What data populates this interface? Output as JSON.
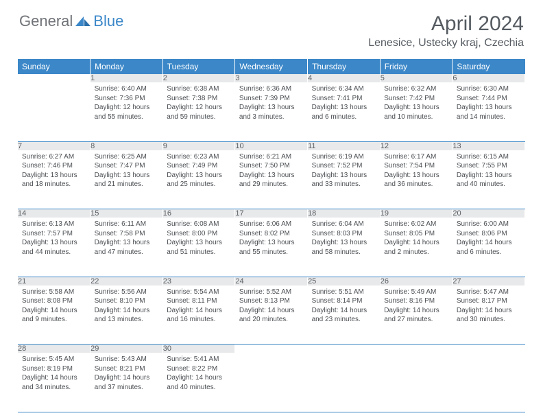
{
  "brand": {
    "part1": "General",
    "part2": "Blue"
  },
  "title": "April 2024",
  "location": "Lenesice, Ustecky kraj, Czechia",
  "colors": {
    "accent": "#3b87c8",
    "headerText": "#ffffff",
    "dayBg": "#e8e9ea",
    "text": "#4a4e52",
    "titleText": "#555b61"
  },
  "weekdays": [
    "Sunday",
    "Monday",
    "Tuesday",
    "Wednesday",
    "Thursday",
    "Friday",
    "Saturday"
  ],
  "weeks": [
    [
      {
        "n": "",
        "sr": "",
        "ss": "",
        "dl": ""
      },
      {
        "n": "1",
        "sr": "Sunrise: 6:40 AM",
        "ss": "Sunset: 7:36 PM",
        "dl": "Daylight: 12 hours and 55 minutes."
      },
      {
        "n": "2",
        "sr": "Sunrise: 6:38 AM",
        "ss": "Sunset: 7:38 PM",
        "dl": "Daylight: 12 hours and 59 minutes."
      },
      {
        "n": "3",
        "sr": "Sunrise: 6:36 AM",
        "ss": "Sunset: 7:39 PM",
        "dl": "Daylight: 13 hours and 3 minutes."
      },
      {
        "n": "4",
        "sr": "Sunrise: 6:34 AM",
        "ss": "Sunset: 7:41 PM",
        "dl": "Daylight: 13 hours and 6 minutes."
      },
      {
        "n": "5",
        "sr": "Sunrise: 6:32 AM",
        "ss": "Sunset: 7:42 PM",
        "dl": "Daylight: 13 hours and 10 minutes."
      },
      {
        "n": "6",
        "sr": "Sunrise: 6:30 AM",
        "ss": "Sunset: 7:44 PM",
        "dl": "Daylight: 13 hours and 14 minutes."
      }
    ],
    [
      {
        "n": "7",
        "sr": "Sunrise: 6:27 AM",
        "ss": "Sunset: 7:46 PM",
        "dl": "Daylight: 13 hours and 18 minutes."
      },
      {
        "n": "8",
        "sr": "Sunrise: 6:25 AM",
        "ss": "Sunset: 7:47 PM",
        "dl": "Daylight: 13 hours and 21 minutes."
      },
      {
        "n": "9",
        "sr": "Sunrise: 6:23 AM",
        "ss": "Sunset: 7:49 PM",
        "dl": "Daylight: 13 hours and 25 minutes."
      },
      {
        "n": "10",
        "sr": "Sunrise: 6:21 AM",
        "ss": "Sunset: 7:50 PM",
        "dl": "Daylight: 13 hours and 29 minutes."
      },
      {
        "n": "11",
        "sr": "Sunrise: 6:19 AM",
        "ss": "Sunset: 7:52 PM",
        "dl": "Daylight: 13 hours and 33 minutes."
      },
      {
        "n": "12",
        "sr": "Sunrise: 6:17 AM",
        "ss": "Sunset: 7:54 PM",
        "dl": "Daylight: 13 hours and 36 minutes."
      },
      {
        "n": "13",
        "sr": "Sunrise: 6:15 AM",
        "ss": "Sunset: 7:55 PM",
        "dl": "Daylight: 13 hours and 40 minutes."
      }
    ],
    [
      {
        "n": "14",
        "sr": "Sunrise: 6:13 AM",
        "ss": "Sunset: 7:57 PM",
        "dl": "Daylight: 13 hours and 44 minutes."
      },
      {
        "n": "15",
        "sr": "Sunrise: 6:11 AM",
        "ss": "Sunset: 7:58 PM",
        "dl": "Daylight: 13 hours and 47 minutes."
      },
      {
        "n": "16",
        "sr": "Sunrise: 6:08 AM",
        "ss": "Sunset: 8:00 PM",
        "dl": "Daylight: 13 hours and 51 minutes."
      },
      {
        "n": "17",
        "sr": "Sunrise: 6:06 AM",
        "ss": "Sunset: 8:02 PM",
        "dl": "Daylight: 13 hours and 55 minutes."
      },
      {
        "n": "18",
        "sr": "Sunrise: 6:04 AM",
        "ss": "Sunset: 8:03 PM",
        "dl": "Daylight: 13 hours and 58 minutes."
      },
      {
        "n": "19",
        "sr": "Sunrise: 6:02 AM",
        "ss": "Sunset: 8:05 PM",
        "dl": "Daylight: 14 hours and 2 minutes."
      },
      {
        "n": "20",
        "sr": "Sunrise: 6:00 AM",
        "ss": "Sunset: 8:06 PM",
        "dl": "Daylight: 14 hours and 6 minutes."
      }
    ],
    [
      {
        "n": "21",
        "sr": "Sunrise: 5:58 AM",
        "ss": "Sunset: 8:08 PM",
        "dl": "Daylight: 14 hours and 9 minutes."
      },
      {
        "n": "22",
        "sr": "Sunrise: 5:56 AM",
        "ss": "Sunset: 8:10 PM",
        "dl": "Daylight: 14 hours and 13 minutes."
      },
      {
        "n": "23",
        "sr": "Sunrise: 5:54 AM",
        "ss": "Sunset: 8:11 PM",
        "dl": "Daylight: 14 hours and 16 minutes."
      },
      {
        "n": "24",
        "sr": "Sunrise: 5:52 AM",
        "ss": "Sunset: 8:13 PM",
        "dl": "Daylight: 14 hours and 20 minutes."
      },
      {
        "n": "25",
        "sr": "Sunrise: 5:51 AM",
        "ss": "Sunset: 8:14 PM",
        "dl": "Daylight: 14 hours and 23 minutes."
      },
      {
        "n": "26",
        "sr": "Sunrise: 5:49 AM",
        "ss": "Sunset: 8:16 PM",
        "dl": "Daylight: 14 hours and 27 minutes."
      },
      {
        "n": "27",
        "sr": "Sunrise: 5:47 AM",
        "ss": "Sunset: 8:17 PM",
        "dl": "Daylight: 14 hours and 30 minutes."
      }
    ],
    [
      {
        "n": "28",
        "sr": "Sunrise: 5:45 AM",
        "ss": "Sunset: 8:19 PM",
        "dl": "Daylight: 14 hours and 34 minutes."
      },
      {
        "n": "29",
        "sr": "Sunrise: 5:43 AM",
        "ss": "Sunset: 8:21 PM",
        "dl": "Daylight: 14 hours and 37 minutes."
      },
      {
        "n": "30",
        "sr": "Sunrise: 5:41 AM",
        "ss": "Sunset: 8:22 PM",
        "dl": "Daylight: 14 hours and 40 minutes."
      },
      {
        "n": "",
        "sr": "",
        "ss": "",
        "dl": ""
      },
      {
        "n": "",
        "sr": "",
        "ss": "",
        "dl": ""
      },
      {
        "n": "",
        "sr": "",
        "ss": "",
        "dl": ""
      },
      {
        "n": "",
        "sr": "",
        "ss": "",
        "dl": ""
      }
    ]
  ]
}
